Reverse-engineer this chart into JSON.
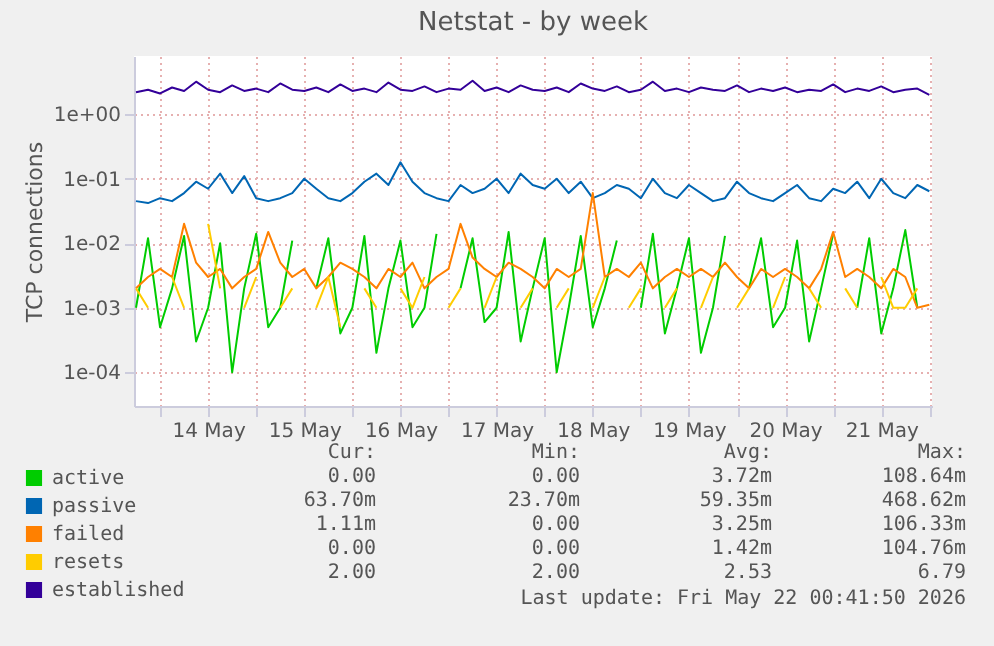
{
  "chart_data": {
    "type": "line",
    "title": "Netstat - by week",
    "ylabel": "TCP connections",
    "x": [
      "2026-05-13T18:00",
      "2026-05-13T21:00",
      "2026-05-14T00:00",
      "2026-05-14T03:00",
      "2026-05-14T06:00",
      "2026-05-14T09:00",
      "2026-05-14T12:00",
      "2026-05-14T15:00",
      "2026-05-14T18:00",
      "2026-05-14T21:00",
      "2026-05-15T00:00",
      "2026-05-15T03:00",
      "2026-05-15T06:00",
      "2026-05-15T09:00",
      "2026-05-15T12:00",
      "2026-05-15T15:00",
      "2026-05-15T18:00",
      "2026-05-15T21:00",
      "2026-05-16T00:00",
      "2026-05-16T03:00",
      "2026-05-16T06:00",
      "2026-05-16T09:00",
      "2026-05-16T12:00",
      "2026-05-16T15:00",
      "2026-05-16T18:00",
      "2026-05-16T21:00",
      "2026-05-17T00:00",
      "2026-05-17T03:00",
      "2026-05-17T06:00",
      "2026-05-17T09:00",
      "2026-05-17T12:00",
      "2026-05-17T15:00",
      "2026-05-17T18:00",
      "2026-05-17T21:00",
      "2026-05-18T00:00",
      "2026-05-18T03:00",
      "2026-05-18T06:00",
      "2026-05-18T09:00",
      "2026-05-18T12:00",
      "2026-05-18T15:00",
      "2026-05-18T18:00",
      "2026-05-18T21:00",
      "2026-05-19T00:00",
      "2026-05-19T03:00",
      "2026-05-19T06:00",
      "2026-05-19T09:00",
      "2026-05-19T12:00",
      "2026-05-19T15:00",
      "2026-05-19T18:00",
      "2026-05-19T21:00",
      "2026-05-20T00:00",
      "2026-05-20T03:00",
      "2026-05-20T06:00",
      "2026-05-20T09:00",
      "2026-05-20T12:00",
      "2026-05-20T15:00",
      "2026-05-20T18:00",
      "2026-05-20T21:00",
      "2026-05-21T00:00",
      "2026-05-21T03:00",
      "2026-05-21T06:00",
      "2026-05-21T09:00",
      "2026-05-21T12:00",
      "2026-05-21T15:00",
      "2026-05-21T18:00",
      "2026-05-21T21:00",
      "2026-05-22T00:00"
    ],
    "series": [
      {
        "name": "active",
        "color": "#00cc00",
        "values": [
          0.001,
          0.012,
          0.0005,
          0.002,
          0.013,
          0.0003,
          0.001,
          0.01,
          0.0001,
          0.002,
          0.014,
          0.0005,
          0.001,
          0.011,
          null,
          0.002,
          0.012,
          0.0004,
          0.001,
          0.013,
          0.0002,
          0.002,
          0.011,
          0.0005,
          0.001,
          0.014,
          null,
          0.002,
          0.012,
          0.0006,
          0.001,
          0.015,
          0.0003,
          0.002,
          0.012,
          0.0001,
          0.001,
          0.013,
          0.0005,
          0.002,
          0.011,
          null,
          0.001,
          0.014,
          0.0004,
          0.002,
          0.012,
          0.0002,
          0.001,
          0.013,
          null,
          0.002,
          0.012,
          0.0005,
          0.001,
          0.011,
          0.0003,
          0.002,
          0.014,
          null,
          0.001,
          0.012,
          0.0004,
          0.002,
          0.016,
          0.001,
          null
        ]
      },
      {
        "name": "passive",
        "color": "#0066b3",
        "values": [
          0.045,
          0.042,
          0.05,
          0.045,
          0.06,
          0.09,
          0.07,
          0.12,
          0.06,
          0.11,
          0.05,
          0.045,
          0.05,
          0.06,
          0.1,
          0.07,
          0.05,
          0.045,
          0.06,
          0.09,
          0.12,
          0.08,
          0.18,
          0.09,
          0.06,
          0.05,
          0.045,
          0.08,
          0.06,
          0.07,
          0.1,
          0.06,
          0.12,
          0.08,
          0.07,
          0.1,
          0.06,
          0.09,
          0.05,
          0.06,
          0.08,
          0.07,
          0.05,
          0.1,
          0.06,
          0.05,
          0.08,
          0.06,
          0.045,
          0.05,
          0.09,
          0.06,
          0.05,
          0.045,
          0.06,
          0.08,
          0.05,
          0.045,
          0.07,
          0.06,
          0.09,
          0.05,
          0.1,
          0.06,
          0.05,
          0.08,
          0.064
        ]
      },
      {
        "name": "failed",
        "color": "#ff8000",
        "values": [
          0.002,
          0.003,
          0.004,
          0.003,
          0.02,
          0.005,
          0.003,
          0.004,
          0.002,
          0.003,
          0.004,
          0.015,
          0.005,
          0.003,
          0.004,
          0.002,
          0.003,
          0.005,
          0.004,
          0.003,
          0.002,
          0.004,
          0.003,
          0.005,
          0.002,
          0.003,
          0.004,
          0.02,
          0.006,
          0.004,
          0.003,
          0.005,
          0.004,
          0.003,
          0.002,
          0.004,
          0.003,
          0.004,
          0.06,
          0.003,
          0.004,
          0.003,
          0.005,
          0.002,
          0.003,
          0.004,
          0.003,
          0.004,
          0.003,
          0.005,
          0.003,
          0.002,
          0.004,
          0.003,
          0.004,
          0.003,
          0.002,
          0.004,
          0.015,
          0.003,
          0.004,
          0.003,
          0.002,
          0.004,
          0.003,
          0.001,
          0.00111
        ]
      },
      {
        "name": "resets",
        "color": "#ffcc00",
        "values": [
          0.002,
          0.001,
          null,
          0.003,
          0.001,
          null,
          0.02,
          0.002,
          null,
          0.001,
          0.003,
          null,
          0.001,
          0.002,
          null,
          0.001,
          0.003,
          0.0005,
          null,
          0.002,
          0.001,
          null,
          0.002,
          0.001,
          0.003,
          null,
          0.001,
          0.002,
          null,
          0.001,
          0.003,
          null,
          0.001,
          0.002,
          null,
          0.001,
          0.002,
          null,
          0.001,
          0.003,
          null,
          0.001,
          0.002,
          null,
          0.001,
          0.002,
          null,
          0.001,
          0.003,
          null,
          0.001,
          0.002,
          null,
          0.001,
          0.003,
          null,
          0.002,
          0.001,
          null,
          0.002,
          0.001,
          null,
          0.003,
          0.001,
          0.001,
          0.002,
          null
        ]
      },
      {
        "name": "established",
        "color": "#330099",
        "values": [
          2.2,
          2.4,
          2.1,
          2.6,
          2.3,
          3.2,
          2.4,
          2.2,
          2.8,
          2.3,
          2.5,
          2.2,
          3.0,
          2.4,
          2.3,
          2.6,
          2.2,
          2.9,
          2.3,
          2.5,
          2.2,
          3.1,
          2.4,
          2.3,
          2.7,
          2.2,
          2.5,
          2.4,
          3.3,
          2.3,
          2.6,
          2.2,
          2.8,
          2.4,
          2.3,
          2.6,
          2.2,
          3.0,
          2.5,
          2.3,
          2.7,
          2.2,
          2.4,
          3.2,
          2.3,
          2.5,
          2.2,
          2.6,
          2.4,
          2.3,
          2.8,
          2.2,
          2.5,
          2.3,
          2.6,
          2.2,
          2.4,
          2.3,
          2.9,
          2.2,
          2.5,
          2.3,
          2.7,
          2.2,
          2.4,
          2.5,
          2.0
        ]
      }
    ],
    "log": "y",
    "ylim": [
      3e-05,
      8
    ],
    "yticks": [
      {
        "value": 1,
        "label": "1e+00"
      },
      {
        "value": 0.1,
        "label": "1e-01"
      },
      {
        "value": 0.01,
        "label": "1e-02"
      },
      {
        "value": 0.001,
        "label": "1e-03"
      },
      {
        "value": 0.0001,
        "label": "1e-04"
      }
    ],
    "xlim": [
      "2026-05-13T17:30",
      "2026-05-22T00:40"
    ],
    "xticks": [
      {
        "value": "2026-05-14T00:00",
        "label": null
      },
      {
        "value": "2026-05-14T12:00",
        "label": "14 May"
      },
      {
        "value": "2026-05-15T00:00",
        "label": null
      },
      {
        "value": "2026-05-15T12:00",
        "label": "15 May"
      },
      {
        "value": "2026-05-16T00:00",
        "label": null
      },
      {
        "value": "2026-05-16T12:00",
        "label": "16 May"
      },
      {
        "value": "2026-05-17T00:00",
        "label": null
      },
      {
        "value": "2026-05-17T12:00",
        "label": "17 May"
      },
      {
        "value": "2026-05-18T00:00",
        "label": null
      },
      {
        "value": "2026-05-18T12:00",
        "label": "18 May"
      },
      {
        "value": "2026-05-19T00:00",
        "label": null
      },
      {
        "value": "2026-05-19T12:00",
        "label": "19 May"
      },
      {
        "value": "2026-05-20T00:00",
        "label": null
      },
      {
        "value": "2026-05-20T12:00",
        "label": "20 May"
      },
      {
        "value": "2026-05-21T00:00",
        "label": null
      },
      {
        "value": "2026-05-21T12:00",
        "label": "21 May"
      },
      {
        "value": "2026-05-22T00:00",
        "label": null
      }
    ],
    "grid": true,
    "legend": "bottom left",
    "annotations": [
      "Cur:",
      "Min:",
      "Avg:",
      "Max:",
      "0.00",
      "0.00",
      "3.72m",
      "108.64m",
      "63.70m",
      "23.70m",
      "59.35m",
      "468.62m",
      "1.11m",
      "0.00",
      "3.25m",
      "106.33m",
      "0.00",
      "0.00",
      "1.42m",
      "104.76m",
      "2.00",
      "2.00",
      "2.53",
      "6.79",
      "Last update: Fri May 22 00:41:50 2026"
    ]
  }
}
